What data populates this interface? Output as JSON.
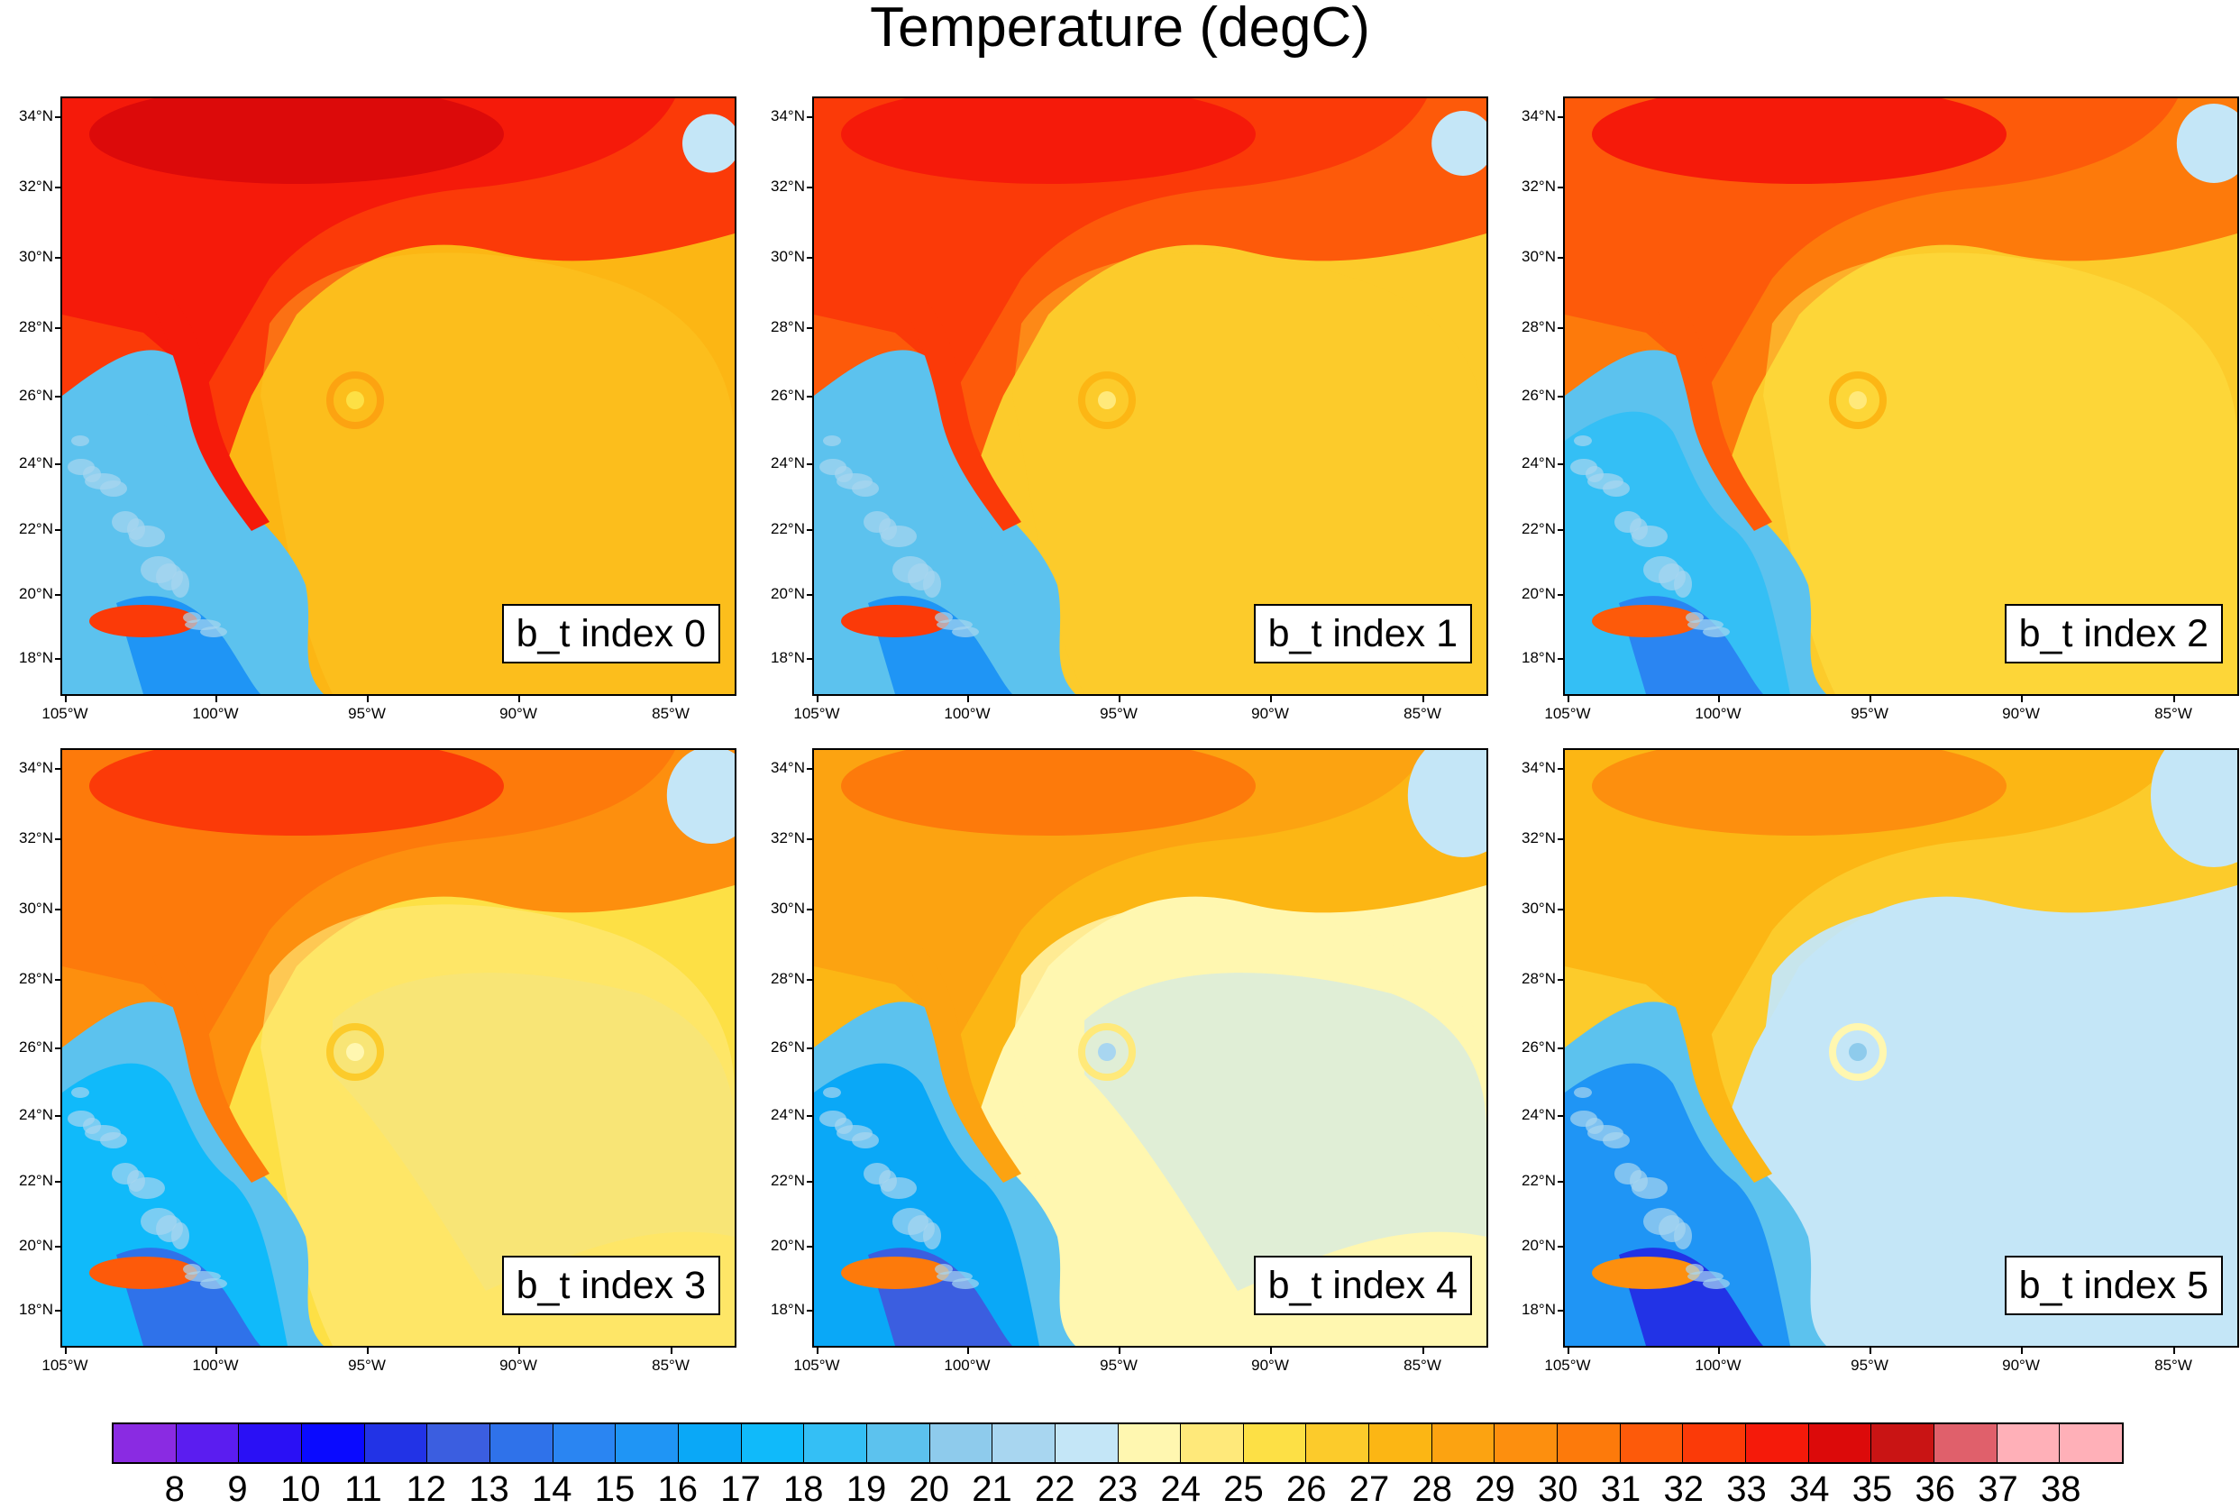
{
  "title": "Temperature (degC)",
  "lat_labels": [
    "34°N",
    "32°N",
    "30°N",
    "28°N",
    "26°N",
    "24°N",
    "22°N",
    "20°N",
    "18°N"
  ],
  "lon_labels": [
    "105°W",
    "100°W",
    "95°W",
    "90°W",
    "85°W"
  ],
  "panels": [
    {
      "label": "b_t index 0",
      "mode": 0.05
    },
    {
      "label": "b_t index 1",
      "mode": 0.12
    },
    {
      "label": "b_t index 2",
      "mode": 0.28
    },
    {
      "label": "b_t index 3",
      "mode": 0.48
    },
    {
      "label": "b_t index 4",
      "mode": 0.78
    },
    {
      "label": "b_t index 5",
      "mode": 1.0
    }
  ],
  "colorbar": {
    "labels": [
      "8",
      "9",
      "10",
      "11",
      "12",
      "13",
      "14",
      "15",
      "16",
      "17",
      "18",
      "19",
      "20",
      "21",
      "22",
      "23",
      "24",
      "25",
      "26",
      "27",
      "28",
      "29",
      "30",
      "31",
      "32",
      "33",
      "34",
      "35",
      "36",
      "37",
      "38"
    ],
    "colors": [
      "#8a2be2",
      "#5b1df0",
      "#2a10f5",
      "#0a0aff",
      "#2233e6",
      "#3b5ee0",
      "#2f72ea",
      "#2a85f2",
      "#1f95f5",
      "#0aa8f7",
      "#10bafa",
      "#34bff5",
      "#5cc2ee",
      "#8ecbec",
      "#a8d6f0",
      "#c4e6f7",
      "#fff7b0",
      "#ffe97a",
      "#fde045",
      "#fccb2b",
      "#fcb614",
      "#fca311",
      "#fd8f0e",
      "#fd7a0b",
      "#fd5a0a",
      "#fb3a08",
      "#f51a0a",
      "#dc0a0a",
      "#c91414",
      "#e0606b",
      "#ffb0b8"
    ]
  }
}
